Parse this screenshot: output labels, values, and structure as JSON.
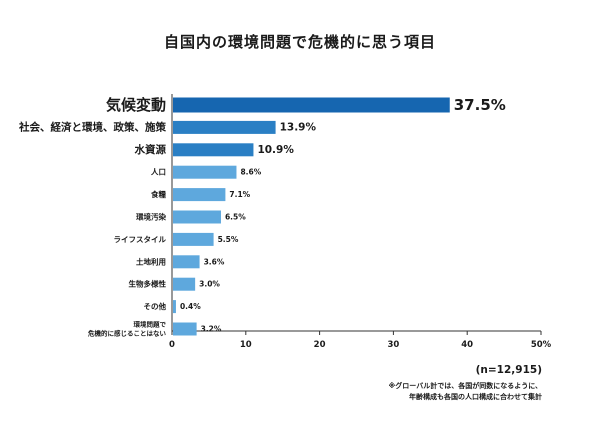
{
  "chart_data": {
    "type": "bar",
    "orientation": "horizontal",
    "title": "自国内の環境問題で危機的に思う項目",
    "categories": [
      "気候変動",
      "社会、経済と環境、政策、施策",
      "水資源",
      "人口",
      "食糧",
      "環境汚染",
      "ライフスタイル",
      "土地利用",
      "生物多様性",
      "その他",
      [
        "環境問題で",
        "危機的に感じることはない"
      ]
    ],
    "values": [
      37.5,
      13.9,
      10.9,
      8.6,
      7.1,
      6.5,
      5.5,
      3.6,
      3.0,
      0.4,
      3.2
    ],
    "value_labels": [
      "37.5%",
      "13.9%",
      "10.9%",
      "8.6%",
      "7.1%",
      "6.5%",
      "5.5%",
      "3.6%",
      "3.0%",
      "0.4%",
      "3.2%"
    ],
    "xlim": [
      0,
      50
    ],
    "xticks": [
      "0",
      "10",
      "20",
      "30",
      "40",
      "50%"
    ],
    "colors": {
      "top": "#1666b0",
      "second": "#2a7fc4",
      "rest": "#5ea8dd"
    },
    "grid": false,
    "legend": "none"
  },
  "notes": {
    "sample": "(n=12,915)",
    "line1": "※グローバル計では、各国が同数になるように、",
    "line2": "年齢構成も各国の人口構成に合わせて集計"
  }
}
